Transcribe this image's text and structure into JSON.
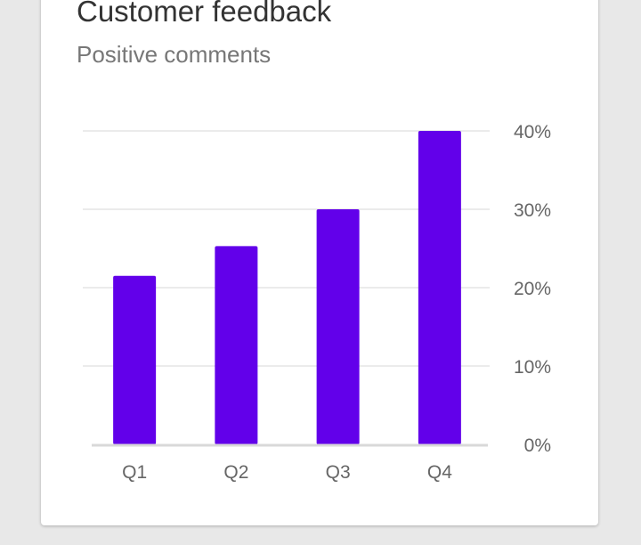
{
  "card": {
    "title": "Customer feedback",
    "subtitle": "Positive comments"
  },
  "colors": {
    "bar": "#6200ea",
    "gridline": "#ebebeb",
    "baseline": "#d9d9d9",
    "tick_label": "#666666",
    "background": "#e8e8e8",
    "card": "#ffffff"
  },
  "chart_data": {
    "type": "bar",
    "title": "Customer feedback",
    "subtitle": "Positive comments",
    "categories": [
      "Q1",
      "Q2",
      "Q3",
      "Q4"
    ],
    "values": [
      21.5,
      25.3,
      30,
      40
    ],
    "ylim": [
      0,
      40
    ],
    "yticks": [
      0,
      10,
      20,
      30,
      40
    ],
    "ytick_labels": [
      "0%",
      "10%",
      "20%",
      "30%",
      "40%"
    ],
    "y_axis_side": "right",
    "grid": true,
    "legend": "none"
  }
}
